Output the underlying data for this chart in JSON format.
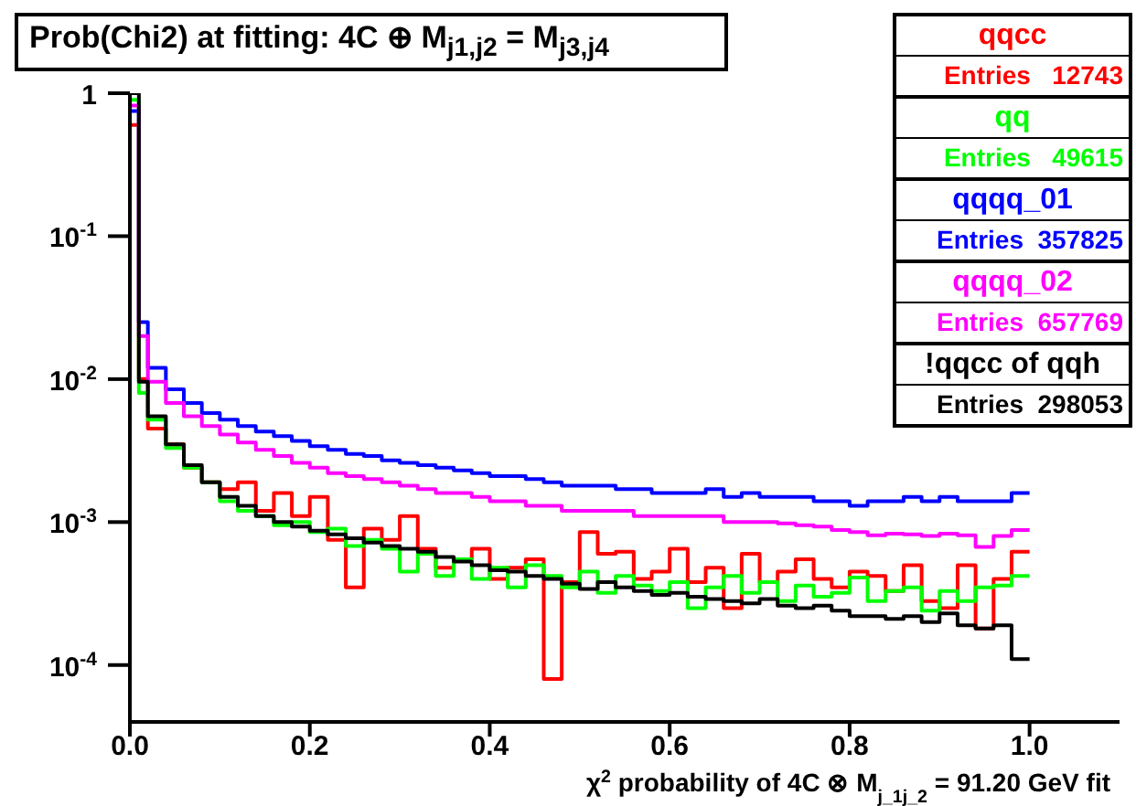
{
  "chart_data": {
    "type": "histogram",
    "title": "Prob(Chi2) at fitting: 4C ⊕ M$_{j1,j2}$  = M$_{j3,j4}$",
    "xlabel": "χ$^{2}$ probability of 4C ⊗ M$_{j_1j_2}$ = 91.20 GeV fit",
    "bins": [
      0,
      0.01,
      0.02,
      0.04,
      0.06,
      0.08,
      0.1,
      0.12,
      0.14,
      0.16,
      0.18,
      0.2,
      0.22,
      0.24,
      0.26,
      0.28,
      0.3,
      0.32,
      0.34,
      0.36,
      0.38,
      0.4,
      0.42,
      0.44,
      0.46,
      0.48,
      0.5,
      0.52,
      0.54,
      0.56,
      0.58,
      0.6,
      0.62,
      0.64,
      0.66,
      0.68,
      0.7,
      0.72,
      0.74,
      0.76,
      0.78,
      0.8,
      0.82,
      0.84,
      0.86,
      0.88,
      0.9,
      0.92,
      0.94,
      0.96,
      0.98,
      1.0
    ],
    "series": [
      {
        "name": "qqcc",
        "color": "#ff0000",
        "values": [
          0.6,
          0.01,
          0.0045,
          0.0035,
          0.0024,
          0.0019,
          0.0017,
          0.0019,
          0.0012,
          0.0016,
          0.0011,
          0.0015,
          0.00075,
          0.00035,
          0.0009,
          0.00075,
          0.0011,
          0.00065,
          0.00048,
          0.00055,
          0.00065,
          0.0004,
          0.00048,
          0.00055,
          8e-05,
          0.00038,
          0.00085,
          0.0006,
          0.00062,
          0.0004,
          0.00045,
          0.00065,
          0.00038,
          0.00048,
          0.00025,
          0.0006,
          0.00038,
          0.00045,
          0.00055,
          0.0004,
          0.00035,
          0.00045,
          0.00042,
          0.00033,
          0.0005,
          0.00028,
          0.00025,
          0.0005,
          0.00018,
          0.0004,
          0.00062
        ]
      },
      {
        "name": "qq",
        "color": "#00ff00",
        "values": [
          0.9,
          0.008,
          0.0052,
          0.0033,
          0.0024,
          0.0019,
          0.0014,
          0.0012,
          0.0011,
          0.00095,
          0.001,
          0.00085,
          0.0009,
          0.00068,
          0.00075,
          0.00065,
          0.00045,
          0.0006,
          0.00042,
          0.00055,
          0.0004,
          0.00048,
          0.00035,
          0.0005,
          0.00042,
          0.00035,
          0.00045,
          0.00032,
          0.00042,
          0.00036,
          0.00033,
          0.00038,
          0.00025,
          0.00035,
          0.00042,
          0.00032,
          0.00038,
          0.00028,
          0.00036,
          0.0003,
          0.00032,
          0.00041,
          0.00028,
          0.00033,
          0.00035,
          0.00024,
          0.00033,
          0.00028,
          0.00035,
          0.00036,
          0.00042
        ]
      },
      {
        "name": "qqqq_01",
        "color": "#0000ff",
        "values": [
          0.75,
          0.025,
          0.012,
          0.0085,
          0.0068,
          0.0058,
          0.0052,
          0.0047,
          0.0043,
          0.004,
          0.0037,
          0.0034,
          0.0032,
          0.003,
          0.0029,
          0.0027,
          0.0026,
          0.0025,
          0.0024,
          0.0023,
          0.0022,
          0.0021,
          0.0021,
          0.002,
          0.0019,
          0.0018,
          0.0018,
          0.0018,
          0.0017,
          0.0017,
          0.0016,
          0.0016,
          0.0016,
          0.0017,
          0.0015,
          0.0016,
          0.0015,
          0.0015,
          0.0015,
          0.0014,
          0.0014,
          0.0013,
          0.0014,
          0.0014,
          0.0015,
          0.0014,
          0.0015,
          0.0014,
          0.0014,
          0.0014,
          0.0016
        ]
      },
      {
        "name": "qqqq_02",
        "color": "#ff00ff",
        "values": [
          0.82,
          0.02,
          0.0096,
          0.0068,
          0.0055,
          0.0047,
          0.0041,
          0.0036,
          0.0032,
          0.0029,
          0.0026,
          0.0024,
          0.0022,
          0.0021,
          0.002,
          0.0019,
          0.0018,
          0.0017,
          0.0016,
          0.0016,
          0.0015,
          0.0014,
          0.0014,
          0.0013,
          0.0013,
          0.0012,
          0.0012,
          0.0012,
          0.0012,
          0.0011,
          0.0011,
          0.0011,
          0.0011,
          0.0011,
          0.001,
          0.001,
          0.001,
          0.00098,
          0.00095,
          0.00093,
          0.00088,
          0.00085,
          0.00081,
          0.00083,
          0.00082,
          0.0008,
          0.00083,
          0.00081,
          0.00067,
          0.0008,
          0.00088
        ]
      },
      {
        "name": "!qqcc of qqh",
        "color": "#000000",
        "values": [
          1,
          0.0096,
          0.0055,
          0.0035,
          0.0025,
          0.0019,
          0.0015,
          0.0013,
          0.0011,
          0.001,
          0.00093,
          0.00087,
          0.00082,
          0.00077,
          0.00072,
          0.00068,
          0.00065,
          0.00062,
          0.00057,
          0.00053,
          0.0005,
          0.00046,
          0.00045,
          0.00042,
          0.0004,
          0.00037,
          0.00034,
          0.00038,
          0.00035,
          0.00033,
          0.00031,
          0.00032,
          0.0003,
          0.00029,
          0.00028,
          0.00027,
          0.00029,
          0.00026,
          0.00025,
          0.00026,
          0.00024,
          0.00022,
          0.00022,
          0.00021,
          0.00022,
          0.0002,
          0.00023,
          0.00019,
          0.00018,
          0.00019,
          0.00011
        ]
      }
    ],
    "annotations": [
      "Entries   12743",
      "Entries   49615",
      "Entries  357825",
      "Entries  657769",
      "Entries  298053"
    ],
    "xlim": [
      0,
      1.1
    ],
    "xticks": [
      {
        "value": 0,
        "label": "0.0"
      },
      {
        "value": 0.2,
        "label": "0.2"
      },
      {
        "value": 0.4,
        "label": "0.4"
      },
      {
        "value": 0.6,
        "label": "0.6"
      },
      {
        "value": 0.8,
        "label": "0.8"
      },
      {
        "value": 1,
        "label": "1.0"
      }
    ],
    "ylim": [
      4e-05,
      1
    ],
    "yticks": [
      {
        "value": 0.0001,
        "label": "10$^{-4}$"
      },
      {
        "value": 0.001,
        "label": "10$^{-3}$"
      },
      {
        "value": 0.01,
        "label": "10$^{-2}$"
      },
      {
        "value": 0.1,
        "label": "10$^{-1}$"
      },
      1
    ],
    "log": "y",
    "legend": "top right",
    "grid": false,
    "marker": "none"
  }
}
